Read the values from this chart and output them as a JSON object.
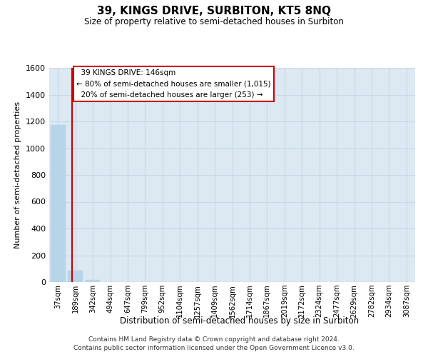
{
  "title": "39, KINGS DRIVE, SURBITON, KT5 8NQ",
  "subtitle": "Size of property relative to semi-detached houses in Surbiton",
  "xlabel": "Distribution of semi-detached houses by size in Surbiton",
  "ylabel": "Number of semi-detached properties",
  "footer_line1": "Contains HM Land Registry data © Crown copyright and database right 2024.",
  "footer_line2": "Contains public sector information licensed under the Open Government Licence v3.0.",
  "categories": [
    "37sqm",
    "189sqm",
    "342sqm",
    "494sqm",
    "647sqm",
    "799sqm",
    "952sqm",
    "1104sqm",
    "1257sqm",
    "1409sqm",
    "1562sqm",
    "1714sqm",
    "1867sqm",
    "2019sqm",
    "2172sqm",
    "2324sqm",
    "2477sqm",
    "2629sqm",
    "2782sqm",
    "2934sqm",
    "3087sqm"
  ],
  "bar_values": [
    1175,
    85,
    18,
    0,
    0,
    0,
    0,
    0,
    0,
    0,
    0,
    0,
    0,
    0,
    0,
    0,
    0,
    0,
    0,
    0,
    0
  ],
  "bar_color": "#b8d4e8",
  "bar_edgecolor": "#b8d4e8",
  "grid_color": "#c8d8e8",
  "background_color": "#dce8f2",
  "annotation_line1": "  39 KINGS DRIVE: 146sqm",
  "annotation_line2": "← 80% of semi-detached houses are smaller (1,015)",
  "annotation_line3": "  20% of semi-detached houses are larger (253) →",
  "annotation_box_facecolor": "#ffffff",
  "annotation_box_edgecolor": "#cc0000",
  "red_line_color": "#cc0000",
  "red_line_x": 0.82,
  "ylim": [
    0,
    1600
  ],
  "yticks": [
    0,
    200,
    400,
    600,
    800,
    1000,
    1200,
    1400,
    1600
  ]
}
